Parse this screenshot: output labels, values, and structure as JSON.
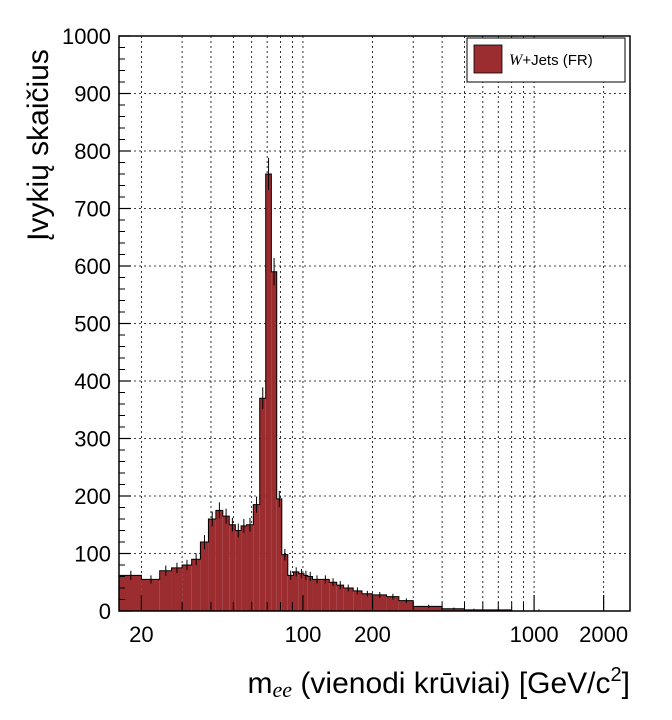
{
  "chart_data": {
    "type": "bar",
    "subtype": "histogram",
    "x_scale": "log",
    "xlim": [
      16,
      2600
    ],
    "ylim": [
      0,
      1000
    ],
    "grid": true,
    "legend_position": "top-right",
    "ylabel": "Įvykių skaičius",
    "xlabel": {
      "main": "m",
      "subscript": "ee",
      "rest": " (vienodi krūviai)  [GeV/c",
      "superscript": "2",
      "end": "]"
    },
    "x_tick_labels": [
      "20",
      "100",
      "200",
      "1000",
      "2000"
    ],
    "x_ticks": [
      20,
      100,
      200,
      1000,
      2000
    ],
    "y_tick_labels": [
      "0",
      "100",
      "200",
      "300",
      "400",
      "500",
      "600",
      "700",
      "800",
      "900",
      "1000"
    ],
    "y_ticks": [
      0,
      100,
      200,
      300,
      400,
      500,
      600,
      700,
      800,
      900,
      1000
    ],
    "series": [
      {
        "name": "W+Jets (FR)",
        "name_parts": {
          "math": "W",
          "rest": "+Jets (FR)"
        },
        "color": "#9b2d30",
        "bins": [
          [
            16,
            20,
            62
          ],
          [
            20,
            24,
            55
          ],
          [
            24,
            27,
            70
          ],
          [
            27,
            30,
            75
          ],
          [
            30,
            33,
            80
          ],
          [
            33,
            36,
            90
          ],
          [
            36,
            39,
            120
          ],
          [
            39,
            42,
            160
          ],
          [
            42,
            45,
            175
          ],
          [
            45,
            48,
            165
          ],
          [
            48,
            51,
            150
          ],
          [
            51,
            54,
            140
          ],
          [
            54,
            57,
            148
          ],
          [
            57,
            61,
            150
          ],
          [
            61,
            65,
            185
          ],
          [
            65,
            69,
            370
          ],
          [
            69,
            73,
            760
          ],
          [
            73,
            77,
            590
          ],
          [
            77,
            81,
            195
          ],
          [
            81,
            86,
            98
          ],
          [
            86,
            91,
            62
          ],
          [
            91,
            96,
            68
          ],
          [
            96,
            101,
            65
          ],
          [
            101,
            105,
            62
          ],
          [
            105,
            110,
            60
          ],
          [
            110,
            120,
            55
          ],
          [
            120,
            130,
            55
          ],
          [
            130,
            140,
            50
          ],
          [
            140,
            150,
            45
          ],
          [
            150,
            165,
            40
          ],
          [
            165,
            180,
            35
          ],
          [
            180,
            200,
            30
          ],
          [
            200,
            230,
            28
          ],
          [
            230,
            260,
            25
          ],
          [
            260,
            300,
            18
          ],
          [
            300,
            400,
            8
          ],
          [
            400,
            500,
            4
          ],
          [
            500,
            600,
            2
          ],
          [
            600,
            800,
            2
          ],
          [
            800,
            2600,
            0
          ]
        ],
        "error_bar_centers": [
          18,
          22,
          25.5,
          28.5,
          31.5,
          34.5,
          37.5,
          40.5,
          43.5,
          46.5,
          49.5,
          52.5,
          55.5,
          59,
          63,
          67,
          71,
          75,
          79,
          83.5,
          88.5,
          93.5,
          98.5,
          103,
          107.5,
          115,
          125,
          135,
          145,
          157,
          172,
          190,
          215,
          245,
          280,
          350,
          450,
          550,
          700,
          1050
        ],
        "errors": [
          8,
          7,
          9,
          9,
          9,
          10,
          12,
          13,
          14,
          13,
          12,
          12,
          12,
          12,
          14,
          19,
          28,
          24,
          14,
          10,
          8,
          8,
          8,
          8,
          8,
          7,
          7,
          7,
          7,
          6,
          6,
          5,
          5,
          5,
          4,
          3,
          2,
          2,
          2,
          3
        ]
      }
    ]
  }
}
